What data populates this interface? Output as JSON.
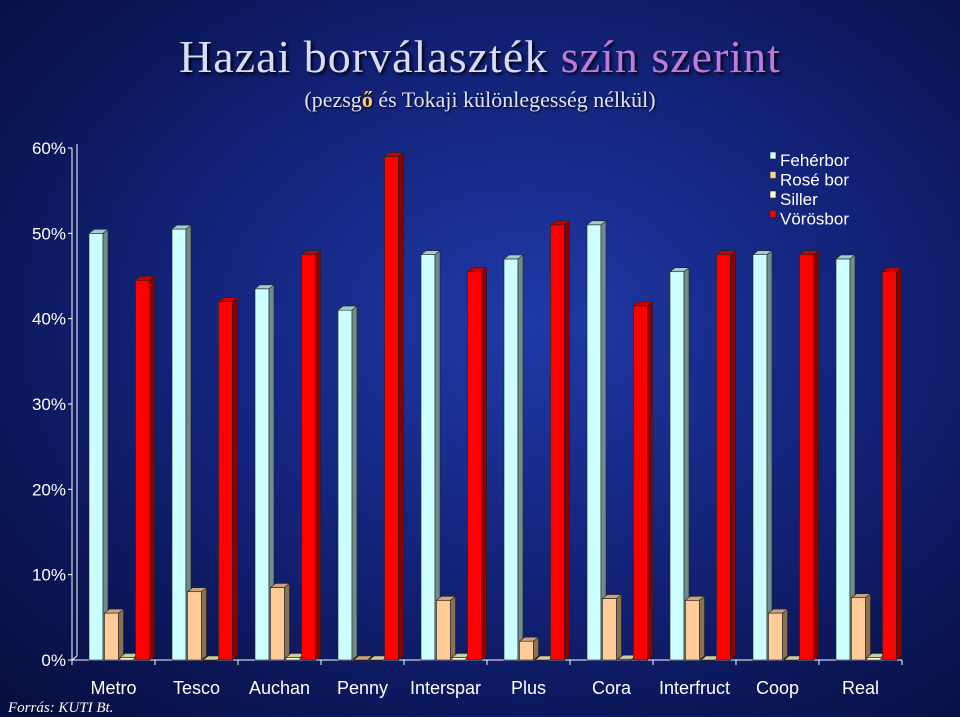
{
  "title": {
    "main": "Hazai borválaszték",
    "highlight": "szín szerint"
  },
  "subtitle": {
    "before": "(pezsg",
    "highlight": "ő",
    "after": " és Tokaji különlegesség nélkül)"
  },
  "source": "Forrás: KUTI Bt.",
  "chart_data": {
    "type": "bar",
    "categories": [
      "Metro",
      "Tesco",
      "Auchan",
      "Penny",
      "Interspar",
      "Plus",
      "Cora",
      "Interfruct",
      "Coop",
      "Real"
    ],
    "series": [
      {
        "name": "Fehérbor",
        "color": "#ccffff",
        "values": [
          50,
          50.5,
          43.5,
          41,
          47.5,
          47,
          51,
          45.5,
          47.5,
          47
        ]
      },
      {
        "name": "Rosé bor",
        "color": "#ffcc99",
        "values": [
          5.5,
          8,
          8.5,
          0,
          7,
          2.2,
          7.2,
          7,
          5.5,
          7.3
        ]
      },
      {
        "name": "Siller",
        "color": "#ffffcc",
        "values": [
          0.3,
          0,
          0.3,
          0,
          0.3,
          0,
          0.1,
          0,
          0,
          0.3
        ]
      },
      {
        "name": "Vörösbor",
        "color": "#ff0000",
        "values": [
          44.5,
          42,
          47.5,
          59,
          45.5,
          51,
          41.5,
          47.5,
          47.5,
          45.5
        ]
      }
    ],
    "yticks": [
      "0%",
      "10%",
      "20%",
      "30%",
      "40%",
      "50%",
      "60%"
    ],
    "ylim": [
      0,
      60
    ],
    "legend_position": "top-right"
  }
}
